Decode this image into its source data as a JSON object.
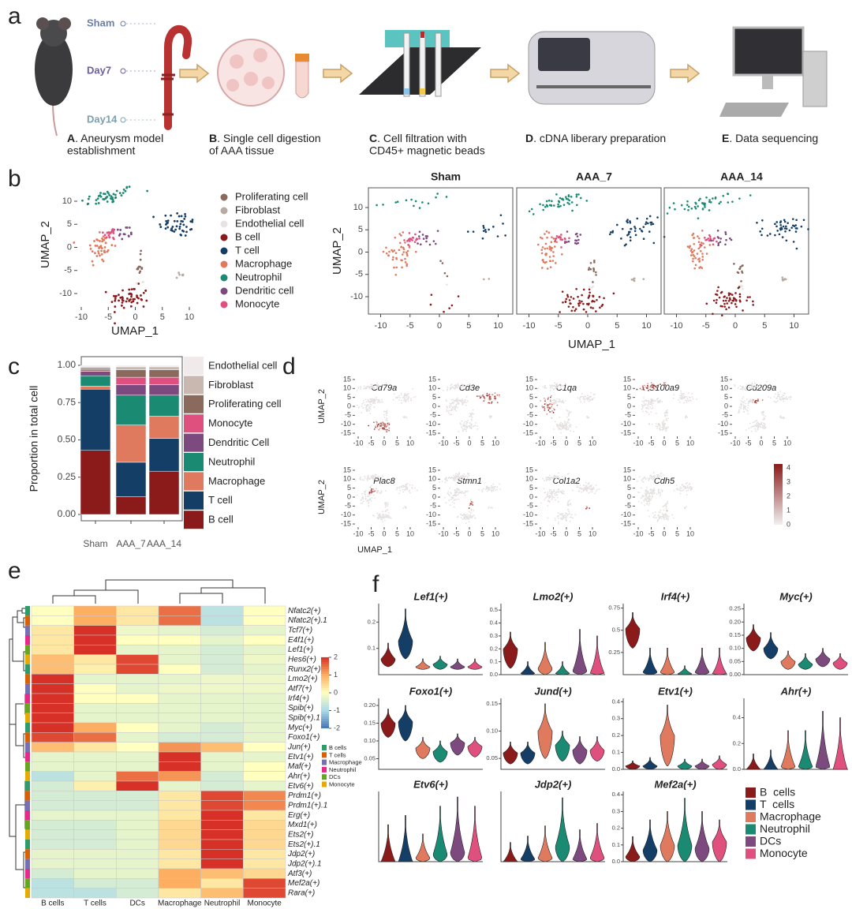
{
  "panel_labels": [
    "a",
    "b",
    "c",
    "d",
    "e",
    "f"
  ],
  "workflow": {
    "timepoints": [
      "Sham",
      "Day7",
      "Day14"
    ],
    "steps": [
      {
        "letter": "A",
        "lines": [
          ". Aneurysm model",
          "establishment"
        ]
      },
      {
        "letter": "B",
        "lines": [
          ". Single cell digestion",
          "of AAA tissue"
        ]
      },
      {
        "letter": "C",
        "lines": [
          ". Cell filtration with",
          "CD45+ magnetic beads"
        ]
      },
      {
        "letter": "D",
        "lines": [
          ". cDNA liberary preparation"
        ]
      },
      {
        "letter": "E",
        "lines": [
          ". Data sequencing"
        ]
      }
    ]
  },
  "umap": {
    "xticks": [
      -10,
      -5,
      0,
      5,
      10
    ],
    "yticks": [
      10,
      5,
      0,
      -5,
      -10
    ],
    "xlabel": "UMAP_1",
    "ylabel": "UMAP_2",
    "split_titles": [
      "Sham",
      "AAA_7",
      "AAA_14"
    ],
    "cell_types": [
      {
        "name": "Proliferating cell",
        "color": "#8b6a5e"
      },
      {
        "name": "Fibroblast",
        "color": "#b8aaa3"
      },
      {
        "name": "Endothelial cell",
        "color": "#e8e4e4"
      },
      {
        "name": "B cell",
        "color": "#8b1a1a"
      },
      {
        "name": "T cell",
        "color": "#153e66"
      },
      {
        "name": "Macrophage",
        "color": "#e07a5f"
      },
      {
        "name": "Neutrophil",
        "color": "#1a8a72"
      },
      {
        "name": "Dendritic cell",
        "color": "#7d4a80"
      },
      {
        "name": "Monocyte",
        "color": "#e0507e"
      }
    ]
  },
  "feature_plots": {
    "genes": [
      "Cd79a",
      "Cd3e",
      "C1qa",
      "S100a9",
      "Cd209a",
      "Plac8",
      "Stmn1",
      "Col1a2",
      "Cdh5"
    ],
    "xticks": [
      -10,
      -5,
      0,
      5,
      10
    ],
    "yticks": [
      15,
      10,
      5,
      0,
      -5,
      -10,
      -15
    ],
    "xlabel": "UMAP_1",
    "ylabel": "UMAP_2",
    "scale_ticks": [
      4,
      3,
      2,
      1,
      0
    ]
  },
  "chart_data": [
    {
      "type": "bar",
      "stacked": true,
      "ylabel": "Proportion in total cell",
      "categories": [
        "Sham",
        "AAA_7",
        "AAA_14"
      ],
      "ylim": [
        0,
        1
      ],
      "yticks": [
        {
          "value": 0,
          "label": "0.00"
        },
        0.25,
        {
          "value": 0.5,
          "label": "0.50"
        },
        0.75,
        {
          "value": 1,
          "label": "1.00"
        }
      ],
      "series": [
        {
          "name": "B cell",
          "color": "#8b1a1a",
          "values": [
            0.43,
            0.12,
            0.29
          ]
        },
        {
          "name": "T cell",
          "color": "#153e66",
          "values": [
            0.41,
            0.23,
            0.22
          ]
        },
        {
          "name": "Macrophage",
          "color": "#e07a5f",
          "values": [
            0.02,
            0.25,
            0.15
          ]
        },
        {
          "name": "Neutrophil",
          "color": "#1a8a72",
          "values": [
            0.07,
            0.2,
            0.14
          ]
        },
        {
          "name": "Dendritic Cell",
          "color": "#7d4a80",
          "values": [
            0.03,
            0.07,
            0.07
          ]
        },
        {
          "name": "Monocyte",
          "color": "#e0507e",
          "values": [
            0.01,
            0.05,
            0.05
          ]
        },
        {
          "name": "Proliferating cell",
          "color": "#8b6a5e",
          "values": [
            0.01,
            0.05,
            0.05
          ]
        },
        {
          "name": "Fibroblast",
          "color": "#c8b8b0",
          "values": [
            0.01,
            0.02,
            0.02
          ]
        },
        {
          "name": "Endothelial cell",
          "color": "#f0eaea",
          "values": [
            0.01,
            0.01,
            0.01
          ]
        }
      ]
    },
    {
      "type": "heatmap",
      "columns": [
        "B cells",
        "T cells",
        "DCs",
        "Macrophage",
        "Neutrophil",
        "Monocyte"
      ],
      "rows": [
        "Nfatc2(+)",
        "Nfatc2(+).1",
        "Tcf7(+)",
        "E4f1(+)",
        "Lef1(+)",
        "Hes6(+)",
        "Runx2(+)",
        "Lmo2(+)",
        "Atf7(+)",
        "Irf4(+)",
        "Spib(+)",
        "Spib(+).1",
        "Myc(+)",
        "Foxo1(+)",
        "Jun(+)",
        "Etv1(+)",
        "Maf(+)",
        "Ahr(+)",
        "Etv6(+)",
        "Prdm1(+)",
        "Prdm1(+).1",
        "Erg(+)",
        "Mxd1(+)",
        "Ets2(+)",
        "Ets2(+).1",
        "Jdp2(+)",
        "Jdp2(+).1",
        "Atf3(+)",
        "Mef2a(+)",
        "Rara(+)"
      ],
      "values": [
        [
          0,
          1,
          0.3,
          1.5,
          -0.8,
          0
        ],
        [
          0,
          1,
          0.3,
          1.5,
          -0.8,
          0
        ],
        [
          0.3,
          2,
          -0.2,
          -0.3,
          -0.5,
          -0.3
        ],
        [
          0.3,
          2,
          0,
          0,
          -0.3,
          0
        ],
        [
          0.3,
          2,
          -0.3,
          -0.3,
          -0.5,
          -0.3
        ],
        [
          0.8,
          0.3,
          1.8,
          -0.3,
          -0.5,
          -0.2
        ],
        [
          0.8,
          0.2,
          1.8,
          0,
          -0.5,
          -0.3
        ],
        [
          2,
          -0.3,
          -0.3,
          -0.3,
          -0.2,
          -0.2
        ],
        [
          2,
          0,
          -0.3,
          -0.2,
          -0.2,
          -0.2
        ],
        [
          2,
          0,
          0,
          -0.3,
          -0.3,
          -0.3
        ],
        [
          2,
          -0.3,
          -0.3,
          -0.3,
          -0.3,
          -0.3
        ],
        [
          2,
          -0.3,
          -0.3,
          -0.3,
          -0.3,
          -0.3
        ],
        [
          2,
          1,
          0,
          -0.3,
          -0.5,
          -0.3
        ],
        [
          1.8,
          1.5,
          -0.3,
          -0.5,
          -0.5,
          -0.3
        ],
        [
          0.8,
          0.3,
          0,
          1.2,
          0.8,
          0
        ],
        [
          -0.3,
          -0.3,
          -0.3,
          2,
          -0.3,
          -0.3
        ],
        [
          -0.3,
          -0.3,
          -0.3,
          2,
          -0.3,
          0
        ],
        [
          -0.8,
          -0.3,
          1.5,
          1.2,
          -0.5,
          0
        ],
        [
          -0.5,
          0.2,
          2,
          -0.3,
          -0.5,
          -0.3
        ],
        [
          -0.5,
          -0.5,
          -0.5,
          0.3,
          1.8,
          1.3
        ],
        [
          -0.5,
          -0.5,
          -0.5,
          0.3,
          1.8,
          1.3
        ],
        [
          -0.3,
          -0.3,
          -0.3,
          0.3,
          2,
          0.3
        ],
        [
          -0.5,
          -0.5,
          -0.3,
          0.5,
          2,
          0.5
        ],
        [
          -0.5,
          -0.5,
          -0.3,
          0.5,
          2,
          0.5
        ],
        [
          -0.5,
          -0.5,
          -0.3,
          0.5,
          2,
          0.5
        ],
        [
          -0.3,
          -0.3,
          -0.3,
          0.3,
          2,
          0.3
        ],
        [
          -0.3,
          -0.3,
          -0.3,
          0.3,
          2,
          0.3
        ],
        [
          -0.5,
          -0.3,
          -0.3,
          1,
          0.8,
          0.5
        ],
        [
          -0.8,
          -0.5,
          -0.5,
          1,
          0.3,
          1.8
        ],
        [
          -0.8,
          -0.8,
          -0.5,
          0.3,
          0.8,
          1.8
        ]
      ],
      "clim": [
        -2,
        2
      ],
      "cticks": [
        2,
        1,
        0,
        -1,
        -2
      ],
      "groups": [
        {
          "name": "B cells",
          "color": "#2e9c6a"
        },
        {
          "name": "T cells",
          "color": "#d95f02"
        },
        {
          "name": "Macrophage",
          "color": "#7570b3"
        },
        {
          "name": "Neutrophil",
          "color": "#e7298a"
        },
        {
          "name": "DCs",
          "color": "#66a61e"
        },
        {
          "name": "Monocyte",
          "color": "#e6ab02"
        }
      ]
    },
    {
      "type": "violin",
      "groups": [
        {
          "name": "B  cells",
          "color": "#8b1a1a"
        },
        {
          "name": "T  cells",
          "color": "#153e66"
        },
        {
          "name": "Macrophage",
          "color": "#e07a5f"
        },
        {
          "name": "Neutrophil",
          "color": "#1a8a72"
        },
        {
          "name": "DCs",
          "color": "#7d4a80"
        },
        {
          "name": "Monocyte",
          "color": "#e0507e"
        }
      ],
      "panels": [
        {
          "title": "Lef1(+)",
          "ylim": [
            0,
            0.27
          ],
          "yticks": [
            0.1,
            0.2
          ],
          "values": [
            0.06,
            0.13,
            0.03,
            0.04,
            0.03,
            0.03
          ],
          "min": [
            0.03,
            0.06,
            0.02,
            0.02,
            0.02,
            0.02
          ],
          "max": [
            0.12,
            0.25,
            0.06,
            0.07,
            0.06,
            0.06
          ]
        },
        {
          "title": "Lmo2(+)",
          "ylim": [
            0,
            0.55
          ],
          "yticks": [
            {
              "value": 0,
              "label": "0.0"
            },
            0.1,
            0.2,
            0.3,
            0.4,
            0.5
          ],
          "values": [
            0.2,
            0.01,
            0.05,
            0.01,
            0.03,
            0.01
          ],
          "min": [
            0.05,
            0,
            0,
            0,
            0,
            0
          ],
          "max": [
            0.33,
            0.1,
            0.25,
            0.1,
            0.35,
            0.3
          ]
        },
        {
          "title": "Irf4(+)",
          "ylim": [
            0,
            0.8
          ],
          "yticks": [
            0.25,
            0.5,
            0.75
          ],
          "values": [
            0.52,
            0.03,
            0.03,
            0.01,
            0.03,
            0.01
          ],
          "min": [
            0.3,
            0,
            0,
            0,
            0,
            0
          ],
          "max": [
            0.7,
            0.3,
            0.3,
            0.1,
            0.3,
            0.3
          ]
        },
        {
          "title": "Myc(+)",
          "ylim": [
            0,
            0.27
          ],
          "yticks": [
            {
              "value": 0,
              "label": "0.00"
            },
            0.05,
            {
              "value": 0.1,
              "label": "0.10"
            },
            0.15,
            {
              "value": 0.2,
              "label": "0.20"
            },
            0.25
          ],
          "values": [
            0.14,
            0.1,
            0.05,
            0.04,
            0.06,
            0.045
          ],
          "min": [
            0.09,
            0.06,
            0.02,
            0.02,
            0.03,
            0.02
          ],
          "max": [
            0.19,
            0.16,
            0.09,
            0.08,
            0.1,
            0.08
          ]
        },
        {
          "title": "Foxo1(+)",
          "ylim": [
            0.02,
            0.22
          ],
          "yticks": [
            0.05,
            {
              "value": 0.1,
              "label": "0.10"
            },
            0.15,
            {
              "value": 0.2,
              "label": "0.20"
            }
          ],
          "values": [
            0.15,
            0.155,
            0.08,
            0.07,
            0.095,
            0.085
          ],
          "min": [
            0.11,
            0.1,
            0.05,
            0.04,
            0.06,
            0.055
          ],
          "max": [
            0.19,
            0.2,
            0.11,
            0.1,
            0.12,
            0.11
          ]
        },
        {
          "title": "Jund(+)",
          "ylim": [
            0.03,
            0.16
          ],
          "yticks": [
            0.05,
            {
              "value": 0.1,
              "label": "0.10"
            },
            0.15
          ],
          "values": [
            0.06,
            0.06,
            0.1,
            0.075,
            0.065,
            0.065
          ],
          "min": [
            0.04,
            0.04,
            0.05,
            0.045,
            0.04,
            0.045
          ],
          "max": [
            0.08,
            0.08,
            0.15,
            0.1,
            0.09,
            0.09
          ]
        },
        {
          "title": "Etv1(+)",
          "ylim": [
            0,
            0.42
          ],
          "yticks": [
            {
              "value": 0,
              "label": "0.0"
            },
            0.1,
            0.2,
            0.3,
            0.4
          ],
          "values": [
            0.02,
            0.02,
            0.2,
            0.02,
            0.02,
            0.03
          ],
          "min": [
            0,
            0,
            0.02,
            0,
            0,
            0
          ],
          "max": [
            0.05,
            0.07,
            0.38,
            0.06,
            0.06,
            0.08
          ]
        },
        {
          "title": "Ahr(+)",
          "ylim": [
            0,
            0.55
          ],
          "yticks": [
            {
              "value": 0,
              "label": "0.0"
            },
            0.2,
            0.4
          ],
          "values": [
            0,
            0,
            0.02,
            0.02,
            0.02,
            0
          ],
          "min": [
            0,
            0,
            0,
            0,
            0,
            0
          ],
          "max": [
            0.12,
            0.15,
            0.3,
            0.3,
            0.45,
            0.4
          ]
        },
        {
          "title": "Etv6(+)",
          "ylim": [
            0,
            0.38
          ],
          "values": [
            0,
            0,
            0.02,
            0.04,
            0.05,
            0.02
          ],
          "min": [
            0,
            0,
            0,
            0,
            0,
            0
          ],
          "max": [
            0.2,
            0.25,
            0.15,
            0.3,
            0.35,
            0.3
          ]
        },
        {
          "title": "Jdp2(+)",
          "ylim": [
            0,
            0.55
          ],
          "values": [
            0,
            0.02,
            0.03,
            0.12,
            0.02,
            0.03
          ],
          "min": [
            0,
            0,
            0,
            0,
            0,
            0
          ],
          "max": [
            0.15,
            0.2,
            0.28,
            0.5,
            0.25,
            0.3
          ]
        },
        {
          "title": "Mef2a(+)",
          "ylim": [
            0,
            0.42
          ],
          "yticks": [
            {
              "value": 0,
              "label": "0.0"
            },
            0.1,
            0.2,
            0.3,
            0.4
          ],
          "values": [
            0.03,
            0.07,
            0.1,
            0.1,
            0.08,
            0.12
          ],
          "min": [
            0,
            0,
            0,
            0,
            0,
            0
          ],
          "max": [
            0.15,
            0.25,
            0.3,
            0.38,
            0.3,
            0.25
          ]
        }
      ]
    }
  ]
}
